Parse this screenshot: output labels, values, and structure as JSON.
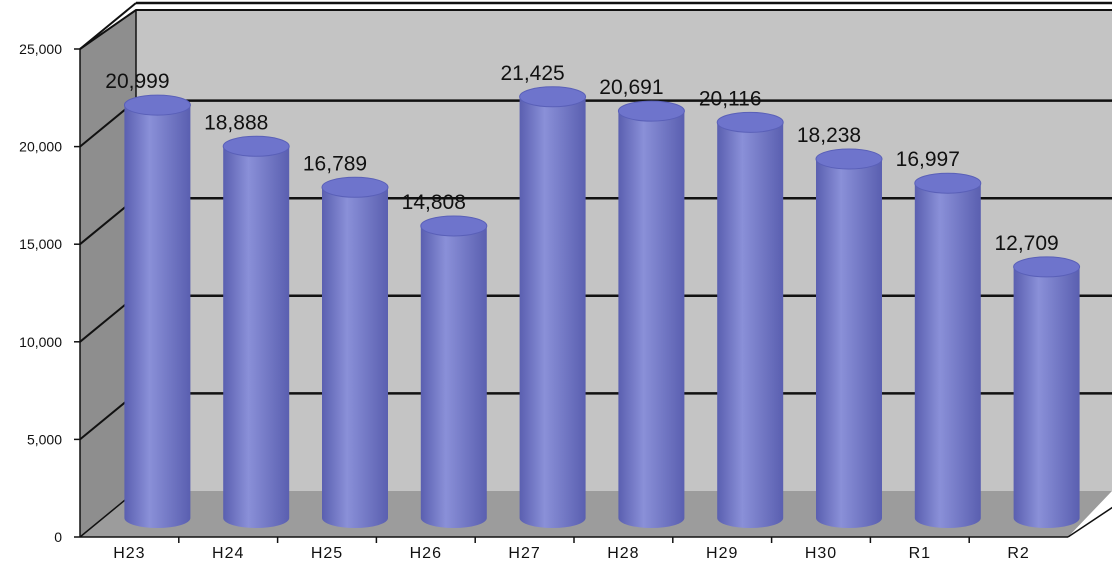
{
  "chart_data": {
    "type": "bar",
    "categories": [
      "H23",
      "H24",
      "H25",
      "H26",
      "H27",
      "H28",
      "H29",
      "H30",
      "R1",
      "R2"
    ],
    "values": [
      20999,
      18888,
      16789,
      14808,
      21425,
      20691,
      20116,
      18238,
      16997,
      12709
    ],
    "value_labels": [
      "20,999",
      "18,888",
      "16,789",
      "14,808",
      "21,425",
      "20,691",
      "20,116",
      "18,238",
      "16,997",
      "12,709"
    ],
    "y_ticks": [
      "0",
      "5,000",
      "10,000",
      "15,000",
      "20,000",
      "25,000"
    ],
    "y_tick_values": [
      0,
      5000,
      10000,
      15000,
      20000,
      25000
    ],
    "ylim": [
      0,
      25000
    ],
    "grid": true,
    "style": "3d-cylinder",
    "colors": {
      "bar": "#8a90d8",
      "bar_dark": "#5a5fb0",
      "bar_top": "#6e74cc",
      "back_wall": "#c4c4c4",
      "side_wall": "#8e8e8e",
      "floor": "#9c9c9c",
      "grid": "#111111"
    }
  }
}
